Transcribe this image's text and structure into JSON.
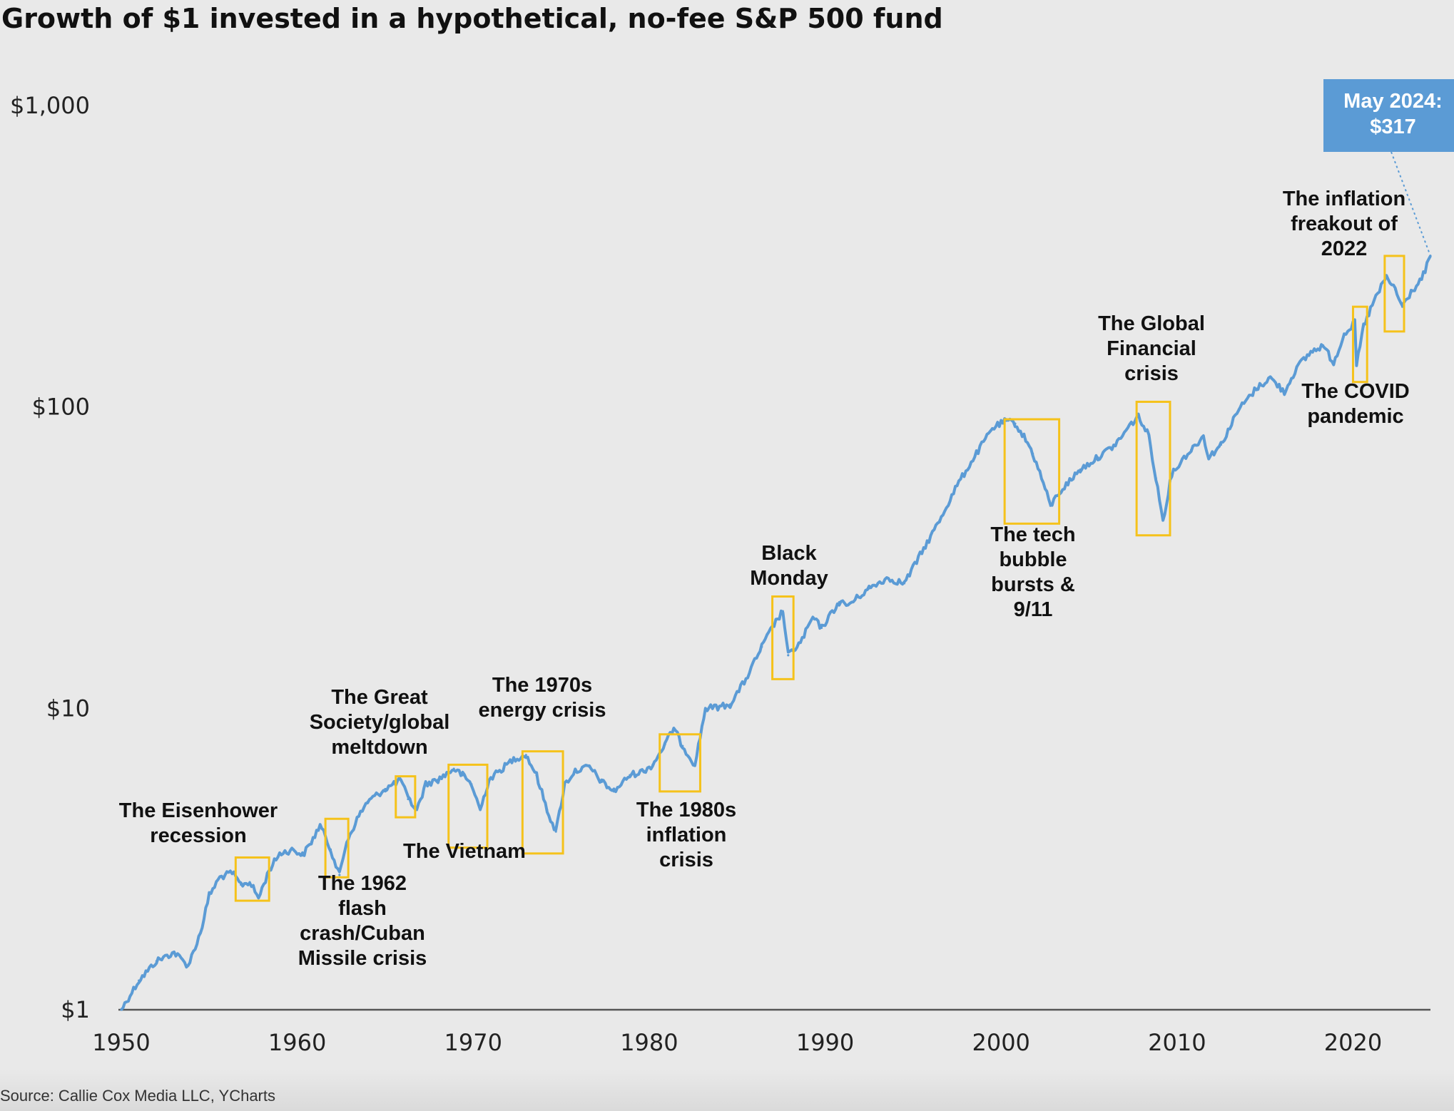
{
  "chart_data": {
    "type": "line",
    "title": "Growth of $1 invested in a hypothetical, no-fee S&P 500 fund",
    "yscale": "log",
    "ylim": [
      1,
      1000
    ],
    "xlim": [
      1950,
      2024.4
    ],
    "y_ticks": [
      {
        "value": 1,
        "label": "$1"
      },
      {
        "value": 10,
        "label": "$10"
      },
      {
        "value": 100,
        "label": "$100"
      },
      {
        "value": 1000,
        "label": "$1,000"
      }
    ],
    "x_ticks": [
      {
        "value": 1950,
        "label": "1950"
      },
      {
        "value": 1960,
        "label": "1960"
      },
      {
        "value": 1970,
        "label": "1970"
      },
      {
        "value": 1980,
        "label": "1980"
      },
      {
        "value": 1990,
        "label": "1990"
      },
      {
        "value": 2000,
        "label": "2000"
      },
      {
        "value": 2010,
        "label": "2010"
      },
      {
        "value": 2020,
        "label": "2020"
      }
    ],
    "series": [
      {
        "name": "Growth of $1",
        "color": "#5b9bd5",
        "x": [
          1950,
          1951,
          1952,
          1953,
          1953.8,
          1954.5,
          1955,
          1955.6,
          1956.3,
          1956.8,
          1957.3,
          1957.8,
          1958.4,
          1959,
          1959.8,
          1960.3,
          1960.8,
          1961.3,
          1961.9,
          1962.4,
          1962.8,
          1963.5,
          1964,
          1965,
          1965.9,
          1966.3,
          1966.8,
          1967.3,
          1968,
          1968.9,
          1969.4,
          1969.9,
          1970.4,
          1970.9,
          1971.5,
          1972.3,
          1973,
          1973.6,
          1974.2,
          1974.7,
          1975.2,
          1975.8,
          1976.6,
          1977.3,
          1978,
          1978.9,
          1979.7,
          1980.2,
          1980.9,
          1981.4,
          1981.9,
          1982.6,
          1983.2,
          1983.9,
          1984.6,
          1985.5,
          1986.4,
          1987.1,
          1987.6,
          1987.9,
          1988.6,
          1989.3,
          1989.8,
          1990.8,
          1991.3,
          1992.5,
          1993.5,
          1994.5,
          1995.5,
          1996.5,
          1997.5,
          1998.6,
          1999.5,
          2000.3,
          2000.8,
          2001.4,
          2001.8,
          2002.4,
          2002.8,
          2003.3,
          2004.5,
          2005.5,
          2006.5,
          2007.4,
          2007.8,
          2008.4,
          2008.8,
          2009.2,
          2009.7,
          2010.4,
          2010.8,
          2011.5,
          2011.8,
          2012.5,
          2013.5,
          2014.5,
          2015.3,
          2016.1,
          2016.8,
          2017.6,
          2018.3,
          2018.9,
          2019.5,
          2020.1,
          2020.2,
          2020.6,
          2021.2,
          2021.9,
          2022.4,
          2022.8,
          2023.3,
          2023.9,
          2024.4
        ],
        "values": [
          1.0,
          1.25,
          1.45,
          1.55,
          1.4,
          1.8,
          2.4,
          2.75,
          2.85,
          2.6,
          2.65,
          2.35,
          2.9,
          3.3,
          3.4,
          3.25,
          3.6,
          4.1,
          3.4,
          2.8,
          3.6,
          4.4,
          4.9,
          5.4,
          5.8,
          5.0,
          4.6,
          5.6,
          5.8,
          6.3,
          6.0,
          5.6,
          4.6,
          5.8,
          6.2,
          6.8,
          7.0,
          6.0,
          4.6,
          3.9,
          5.6,
          6.2,
          6.4,
          5.7,
          5.3,
          6.0,
          6.2,
          6.5,
          7.6,
          8.6,
          7.5,
          6.5,
          10.0,
          10.1,
          10.3,
          12.5,
          16.0,
          19.0,
          21.0,
          15.0,
          16.5,
          20.0,
          18.5,
          22.5,
          22.0,
          25.0,
          27.0,
          26.0,
          33.0,
          42.0,
          55.0,
          70.0,
          85.0,
          90.0,
          88.0,
          78.0,
          70.0,
          56.0,
          47.0,
          52.0,
          62.0,
          68.0,
          75.0,
          88.0,
          93.0,
          80.0,
          58.0,
          42.0,
          60.0,
          68.0,
          72.0,
          80.0,
          68.0,
          75.0,
          98.0,
          115.0,
          125.0,
          112.0,
          135.0,
          152.0,
          160.0,
          140.0,
          175.0,
          190.0,
          137.0,
          185.0,
          225.0,
          270.0,
          245.0,
          215.0,
          240.0,
          265.0,
          317.0
        ]
      }
    ],
    "annotations": [
      {
        "label": [
          "The Eisenhower",
          "recession"
        ],
        "box_years": [
          1956.5,
          1958.4
        ],
        "box_values": [
          2.3,
          3.2
        ]
      },
      {
        "label": [
          "The 1962",
          "flash",
          "crash/Cuban",
          "Missile crisis"
        ],
        "box_years": [
          1961.6,
          1962.9
        ],
        "box_values": [
          2.75,
          4.3
        ]
      },
      {
        "label": [
          "The Great",
          "Society/global",
          "meltdown"
        ],
        "box_years": [
          1965.6,
          1966.7
        ],
        "box_values": [
          4.35,
          5.95
        ]
      },
      {
        "label": [
          "The Vietnam"
        ],
        "box_years": [
          1968.6,
          1970.8
        ],
        "box_values": [
          3.45,
          6.5
        ]
      },
      {
        "label": [
          "The 1970s",
          "energy crisis"
        ],
        "box_years": [
          1972.8,
          1975.1
        ],
        "box_values": [
          3.3,
          7.2
        ]
      },
      {
        "label": [
          "The 1980s",
          "inflation",
          "crisis"
        ],
        "box_years": [
          1980.6,
          1982.9
        ],
        "box_values": [
          5.3,
          8.2
        ]
      },
      {
        "label": [
          "Black",
          "Monday"
        ],
        "box_years": [
          1987.0,
          1988.2
        ],
        "box_values": [
          12.5,
          23.5
        ]
      },
      {
        "label": [
          "The tech",
          "bubble",
          "bursts &",
          "9/11"
        ],
        "box_years": [
          2000.2,
          2003.3
        ],
        "box_values": [
          41.0,
          91.0
        ]
      },
      {
        "label": [
          "The Global",
          "Financial",
          "crisis"
        ],
        "box_years": [
          2007.7,
          2009.6
        ],
        "box_values": [
          37.5,
          104.0
        ]
      },
      {
        "label": [
          "The COVID",
          "pandemic"
        ],
        "box_years": [
          2020.0,
          2020.8
        ],
        "box_values": [
          121.0,
          215.0
        ]
      },
      {
        "label": [
          "The inflation",
          "freakout of",
          "2022"
        ],
        "box_years": [
          2021.8,
          2022.9
        ],
        "box_values": [
          178.0,
          317.0
        ]
      }
    ],
    "callout": {
      "lines": [
        "May 2024:",
        "$317"
      ],
      "x": 2024.4,
      "value": 317
    }
  },
  "source": "Source: Callie Cox Media LLC, YCharts",
  "colors": {
    "line": "#5b9bd5",
    "box": "#f5c21b",
    "callout_bg": "#5b9bd5",
    "axis": "#555555"
  }
}
